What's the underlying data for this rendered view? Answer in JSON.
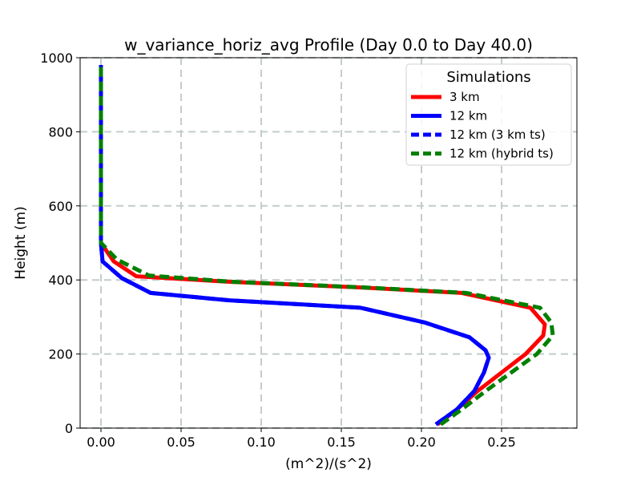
{
  "chart_data": {
    "type": "line",
    "title": "w_variance_horiz_avg Profile (Day 0.0 to Day 40.0)",
    "xlabel": "(m^2)/(s^2)",
    "ylabel": "Height (m)",
    "xlim": [
      -0.013,
      0.297
    ],
    "ylim": [
      0,
      1000
    ],
    "xticks": [
      0.0,
      0.05,
      0.1,
      0.15,
      0.2,
      0.25
    ],
    "xtick_labels": [
      "0.00",
      "0.05",
      "0.10",
      "0.15",
      "0.20",
      "0.25"
    ],
    "yticks": [
      0,
      200,
      400,
      600,
      800,
      1000
    ],
    "ytick_labels": [
      "0",
      "200",
      "400",
      "600",
      "800",
      "1000"
    ],
    "grid": true,
    "legend": {
      "title": "Simulations",
      "position": "top-right"
    },
    "series": [
      {
        "name": "3 km",
        "color": "#ff0000",
        "style": "solid",
        "x": [
          0.21,
          0.222,
          0.235,
          0.25,
          0.265,
          0.276,
          0.277,
          0.268,
          0.225,
          0.16,
          0.08,
          0.022,
          0.008,
          0.0,
          0.0,
          0.0,
          0.0
        ],
        "y": [
          10,
          50,
          100,
          150,
          200,
          250,
          280,
          325,
          365,
          380,
          395,
          410,
          450,
          500,
          600,
          800,
          980
        ]
      },
      {
        "name": "12 km",
        "color": "#0000ff",
        "style": "solid",
        "x": [
          0.209,
          0.222,
          0.233,
          0.239,
          0.242,
          0.24,
          0.23,
          0.202,
          0.162,
          0.08,
          0.031,
          0.013,
          0.001,
          0.0,
          0.0,
          0.0,
          0.0
        ],
        "y": [
          10,
          50,
          100,
          150,
          190,
          210,
          245,
          285,
          325,
          345,
          365,
          405,
          450,
          500,
          600,
          800,
          980
        ]
      },
      {
        "name": "12 km (3 km ts)",
        "color": "#0000ff",
        "style": "dashed",
        "x": [
          0.209,
          0.222,
          0.233,
          0.239,
          0.242,
          0.24,
          0.23,
          0.202,
          0.162,
          0.08,
          0.031,
          0.013,
          0.001,
          0.0,
          0.0,
          0.0,
          0.0
        ],
        "y": [
          10,
          50,
          100,
          150,
          190,
          210,
          245,
          285,
          325,
          345,
          365,
          405,
          450,
          500,
          600,
          800,
          980
        ]
      },
      {
        "name": "12 km (hybrid ts)",
        "color": "#008000",
        "style": "dashed",
        "x": [
          0.212,
          0.225,
          0.24,
          0.256,
          0.272,
          0.282,
          0.281,
          0.274,
          0.228,
          0.163,
          0.082,
          0.03,
          0.01,
          0.0,
          0.0,
          0.0,
          0.0
        ],
        "y": [
          10,
          50,
          100,
          150,
          200,
          250,
          285,
          325,
          365,
          380,
          395,
          412,
          455,
          500,
          600,
          800,
          980
        ]
      }
    ]
  }
}
